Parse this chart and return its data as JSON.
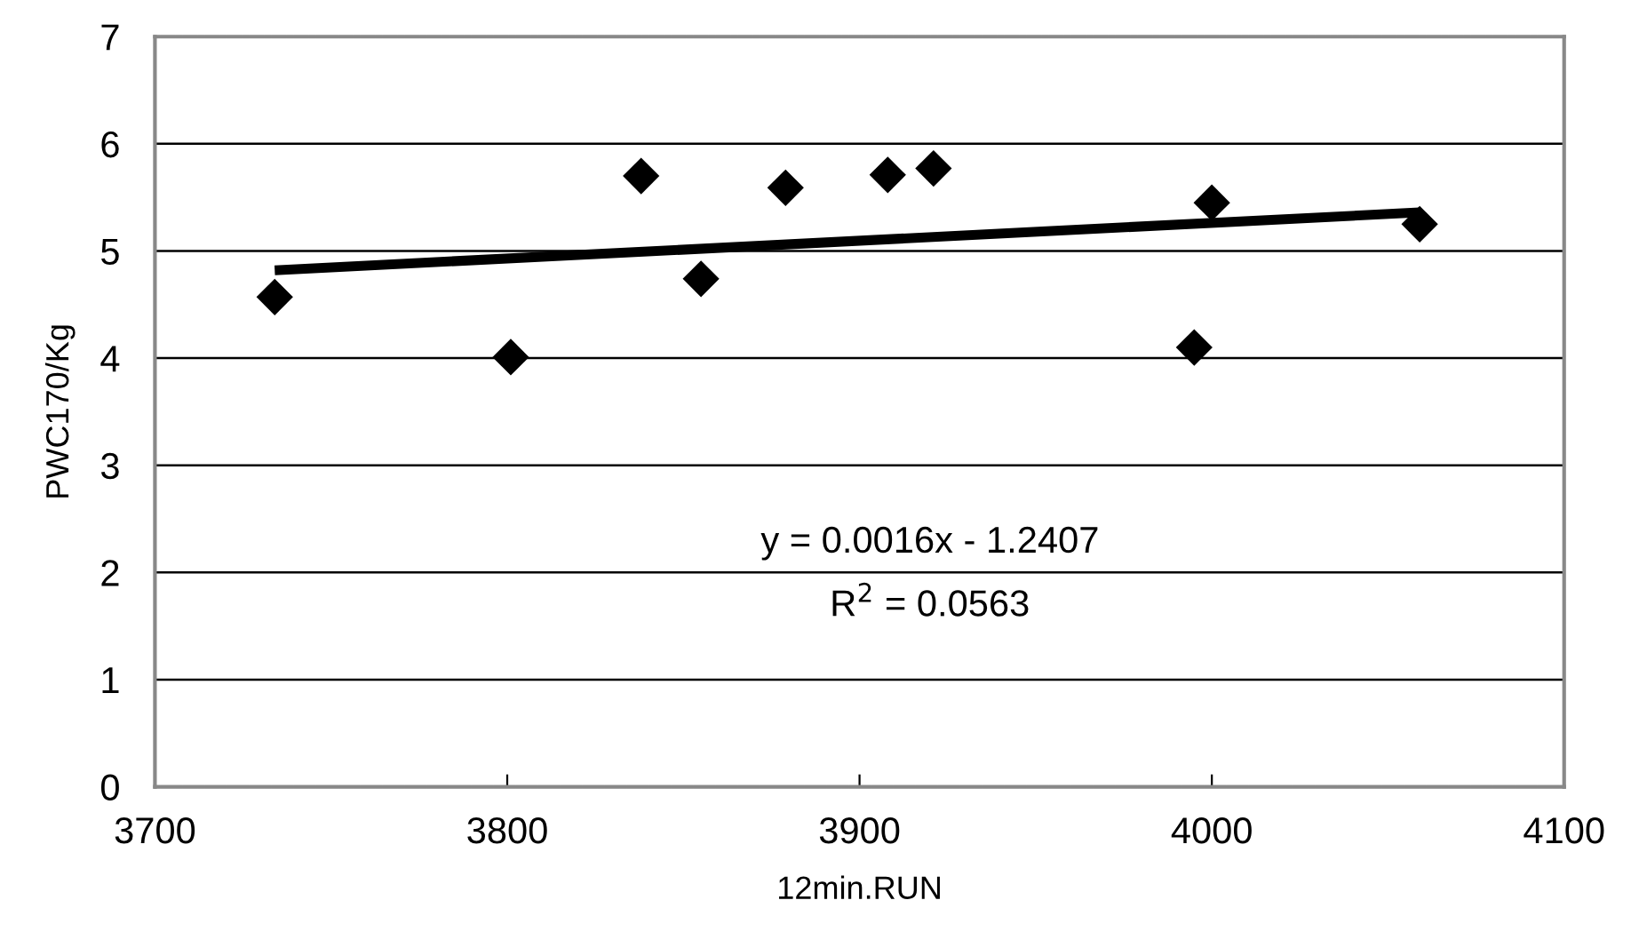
{
  "chart_data": {
    "type": "scatter",
    "xlabel": "12min.RUN",
    "ylabel": "PWC170/Kg",
    "series": [
      {
        "color": "#000000",
        "marker": "diamond",
        "x": [
          3734,
          3801,
          3838,
          3855,
          3879,
          3908,
          3921,
          3995,
          4000,
          4059
        ],
        "values": [
          4.57,
          4.01,
          5.7,
          4.74,
          5.59,
          5.71,
          5.77,
          4.1,
          5.45,
          5.25
        ]
      },
      {
        "type": "line",
        "color": "#000000",
        "marker": "none",
        "x": [
          3734,
          4059
        ],
        "values": [
          4.82,
          5.36
        ]
      }
    ],
    "annotations": [
      "y = 0.0016x - 1.2407",
      "R$^{2}$ = 0.0563"
    ],
    "xlim": [
      3700,
      4100
    ],
    "xticks": [
      3700,
      3800,
      3900,
      4000,
      4100
    ],
    "ylim": [
      0,
      7
    ],
    "yticks": [
      0,
      1,
      2,
      3,
      4,
      5,
      6,
      7
    ],
    "grid": "y"
  }
}
